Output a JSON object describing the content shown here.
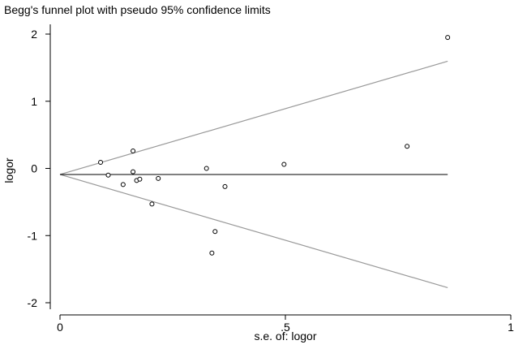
{
  "chart_data": {
    "type": "scatter",
    "title": "Begg's funnel plot with pseudo 95% confidence limits",
    "xlabel": "s.e. of: logor",
    "ylabel": "logor",
    "xlim": [
      0,
      1
    ],
    "ylim": [
      -2,
      2
    ],
    "x_ticks": [
      {
        "value": 0,
        "label": "0"
      },
      {
        "value": 0.5,
        "label": ".5"
      },
      {
        "value": 1,
        "label": "1"
      }
    ],
    "y_ticks": [
      {
        "value": 2,
        "label": "2"
      },
      {
        "value": 1,
        "label": "1"
      },
      {
        "value": 0,
        "label": "0"
      },
      {
        "value": -1,
        "label": "-1"
      },
      {
        "value": -2,
        "label": "-2"
      }
    ],
    "grid": false,
    "legend": "none",
    "pooled_estimate": -0.09,
    "se_max": 0.86,
    "confidence_z": 1.96,
    "points": [
      {
        "x": 0.09,
        "y": 0.09
      },
      {
        "x": 0.107,
        "y": -0.1
      },
      {
        "x": 0.14,
        "y": -0.24
      },
      {
        "x": 0.162,
        "y": -0.05
      },
      {
        "x": 0.162,
        "y": 0.26
      },
      {
        "x": 0.17,
        "y": -0.18
      },
      {
        "x": 0.177,
        "y": -0.16
      },
      {
        "x": 0.204,
        "y": -0.53
      },
      {
        "x": 0.218,
        "y": -0.15
      },
      {
        "x": 0.325,
        "y": 0.0
      },
      {
        "x": 0.337,
        "y": -1.26
      },
      {
        "x": 0.344,
        "y": -0.94
      },
      {
        "x": 0.366,
        "y": -0.27
      },
      {
        "x": 0.497,
        "y": 0.06
      },
      {
        "x": 0.77,
        "y": 0.33
      },
      {
        "x": 0.86,
        "y": 1.95
      }
    ]
  }
}
